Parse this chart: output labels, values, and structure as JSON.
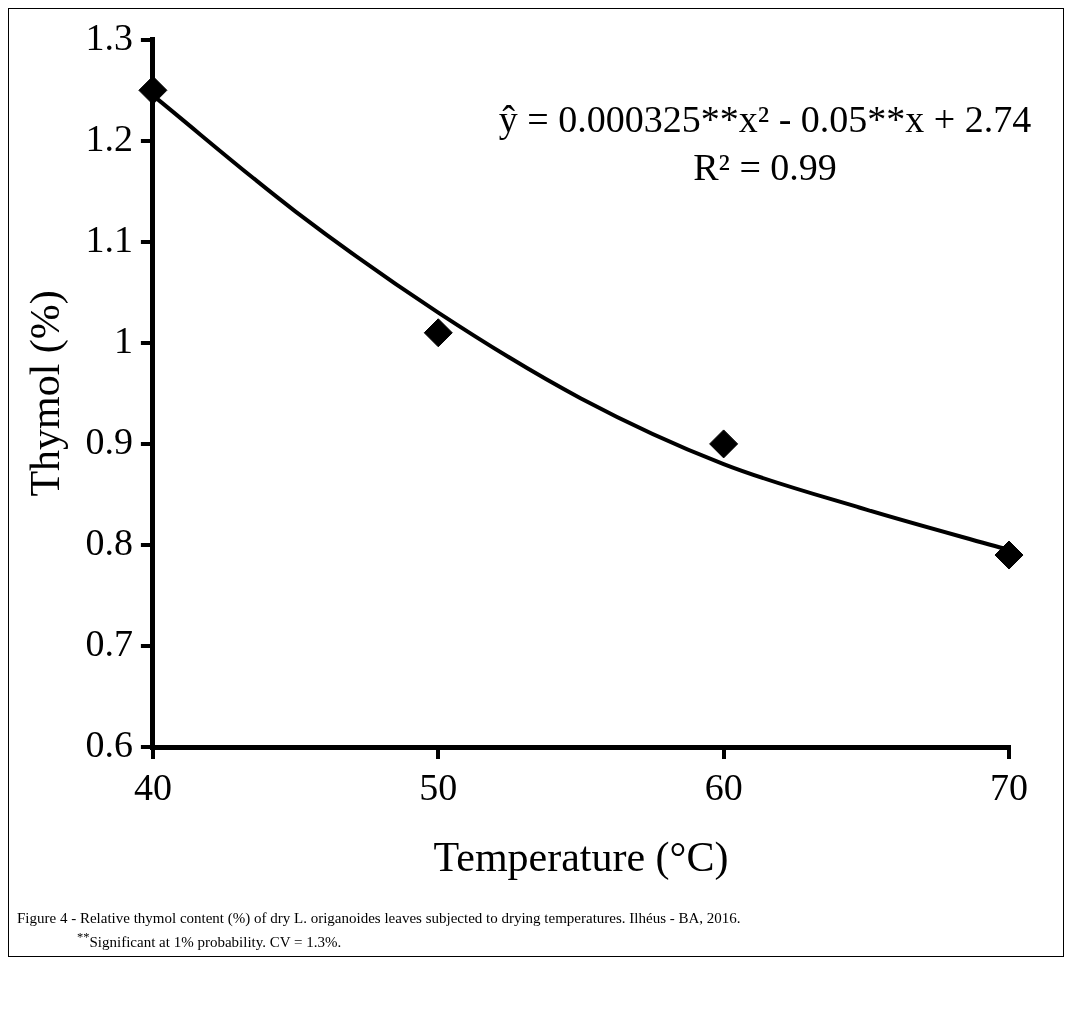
{
  "chart_data": {
    "type": "scatter",
    "xlabel": "Temperature (°C)",
    "ylabel": "Thymol (%)",
    "xlim": [
      40,
      70
    ],
    "xticks": [
      40,
      50,
      60,
      70
    ],
    "ylim": [
      0.6,
      1.3
    ],
    "yticks": [
      0.6,
      0.7,
      0.8,
      0.9,
      1,
      1.1,
      1.2,
      1.3
    ],
    "grid": false,
    "legend": false,
    "marker": "diamond",
    "series": [
      {
        "color": "#000000",
        "x": [
          40,
          50,
          60,
          70
        ],
        "values": [
          1.25,
          1.01,
          0.9,
          0.79
        ]
      },
      {
        "type": "line",
        "color": "#000000",
        "marker": "none",
        "x": [
          40,
          45,
          50,
          55,
          60,
          65,
          70
        ],
        "values": [
          1.245,
          1.13,
          1.03,
          0.945,
          0.88,
          0.835,
          0.795
        ]
      }
    ],
    "annotations": [
      "ŷ = 0.000325**x² - 0.05**x + 2.74",
      "R² = 0.99",
      "Figure 4 - Relative thymol content (%) of dry L. origanoides leaves subjected to drying temperatures. Ilhéus - BA, 2016.",
      "$^{**}$Significant at 1% probability.  CV = 1.3%."
    ]
  }
}
